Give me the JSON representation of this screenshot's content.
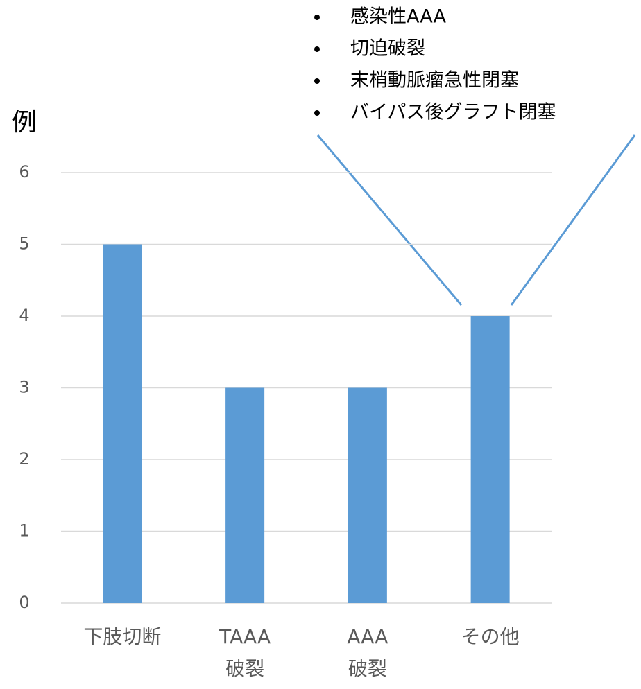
{
  "chart_data": {
    "type": "bar",
    "y_label": "例",
    "categories": [
      [
        "下肢切断"
      ],
      [
        "TAAA",
        "破裂"
      ],
      [
        "AAA",
        "破裂"
      ],
      [
        "その他"
      ]
    ],
    "values": [
      5,
      3,
      3,
      4
    ],
    "color": "#5b9bd5",
    "ylim": [
      0,
      6
    ],
    "yticks": [
      0,
      1,
      2,
      3,
      4,
      5,
      6
    ],
    "grid": true,
    "annotations": [
      "感染性AAA",
      "切迫破裂",
      "末梢動脈瘤急性閉塞",
      "バイパス後グラフト閉塞"
    ]
  }
}
